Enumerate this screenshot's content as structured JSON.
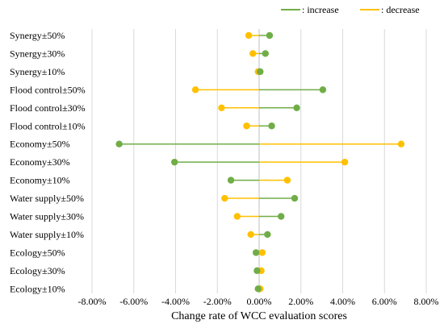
{
  "chart_data": {
    "type": "dumbbell",
    "orientation": "horizontal",
    "title": "",
    "xlabel": "Change rate of WCC evaluation scores",
    "ylabel": "",
    "xlim": [
      -8,
      8
    ],
    "xticks": [
      -8,
      -6,
      -4,
      -2,
      0,
      2,
      4,
      6,
      8
    ],
    "xtick_labels": [
      "-8.00%",
      "-6.00%",
      "-4.00%",
      "-2.00%",
      "0.00%",
      "2.00%",
      "4.00%",
      "6.00%",
      "8.00%"
    ],
    "grid": "vertical",
    "legend": {
      "placement": "top-right",
      "items": [
        {
          "label": ": increase",
          "color": "#70AD47"
        },
        {
          "label": ": decrease",
          "color": "#FFC000"
        }
      ]
    },
    "categories": [
      "Synergy±50%",
      "Synergy±30%",
      "Synergy±10%",
      "Flood control±50%",
      "Flood control±30%",
      "Flood control±10%",
      "Economy±50%",
      "Economy±30%",
      "Economy±10%",
      "Water supply±50%",
      "Water supply±30%",
      "Water supply±10%",
      "Ecology±50%",
      "Ecology±30%",
      "Ecology±10%"
    ],
    "series": [
      {
        "name": ": increase",
        "color": "#70AD47",
        "values": [
          0.5,
          0.3,
          0.05,
          3.05,
          1.8,
          0.6,
          -6.7,
          -4.05,
          -1.35,
          1.7,
          1.05,
          0.4,
          -0.15,
          -0.1,
          -0.05
        ]
      },
      {
        "name": ": decrease",
        "color": "#FFC000",
        "values": [
          -0.5,
          -0.3,
          -0.05,
          -3.05,
          -1.8,
          -0.6,
          6.8,
          4.1,
          1.35,
          -1.65,
          -1.05,
          -0.4,
          0.15,
          0.1,
          0.05
        ]
      }
    ]
  }
}
